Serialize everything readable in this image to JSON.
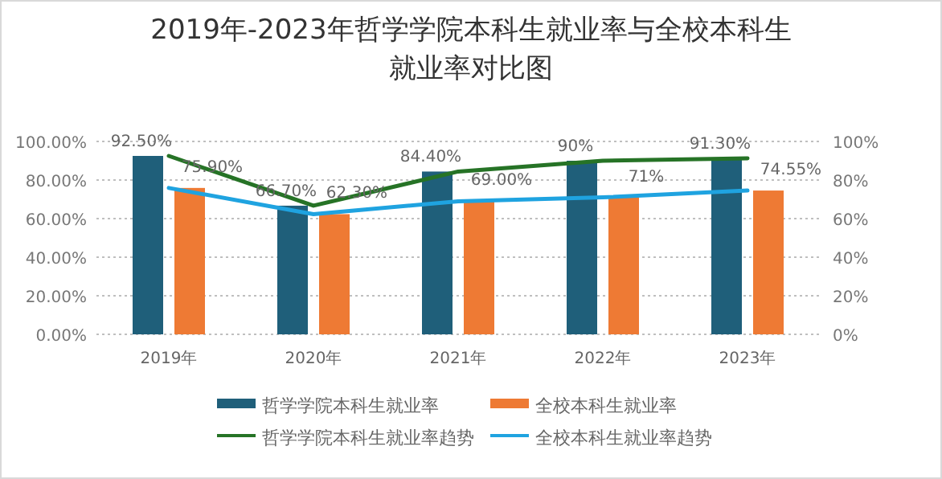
{
  "chart_data": {
    "type": "bar",
    "title": "2019年-2023年哲学学院本科生就业率与全校本科生就业率对比图",
    "categories": [
      "2019年",
      "2020年",
      "2021年",
      "2022年",
      "2023年"
    ],
    "series": [
      {
        "name": "哲学学院本科生就业率",
        "color": "#1f5f7a",
        "values": [
          92.5,
          66.7,
          84.4,
          90,
          91.3
        ],
        "value_labels": [
          "92.50%",
          "66.70%",
          "84.40%",
          "90%",
          "91.30%"
        ]
      },
      {
        "name": "全校本科生就业率",
        "color": "#ee7a34",
        "values": [
          75.9,
          62.3,
          69.0,
          71,
          74.55
        ],
        "value_labels": [
          "75.90%",
          "62.30%",
          "69.00%",
          "71%",
          "74.55%"
        ]
      },
      {
        "name": "哲学学院本科生就业率趋势",
        "type": "line",
        "color": "#267326",
        "values": [
          92.5,
          66.7,
          84.4,
          90,
          91.3
        ]
      },
      {
        "name": "全校本科生就业率趋势",
        "type": "line",
        "color": "#1fa3e0",
        "values": [
          75.9,
          62.3,
          69.0,
          71,
          74.55
        ]
      }
    ],
    "ylim": [
      0,
      100
    ],
    "yticks": [
      {
        "value": 0,
        "label": "0.00%"
      },
      {
        "value": 20,
        "label": "20.00%"
      },
      {
        "value": 40,
        "label": "40.00%"
      },
      {
        "value": 60,
        "label": "60.00%"
      },
      {
        "value": 80,
        "label": "80.00%"
      },
      {
        "value": 100,
        "label": "100.00%"
      }
    ],
    "y2lim": [
      0,
      100
    ],
    "y2ticks": [
      {
        "value": 0,
        "label": "0%"
      },
      {
        "value": 20,
        "label": "20%"
      },
      {
        "value": 40,
        "label": "40%"
      },
      {
        "value": 60,
        "label": "60%"
      },
      {
        "value": 80,
        "label": "80%"
      },
      {
        "value": 100,
        "label": "100%"
      }
    ],
    "grid": "y",
    "legend": "bottom"
  }
}
